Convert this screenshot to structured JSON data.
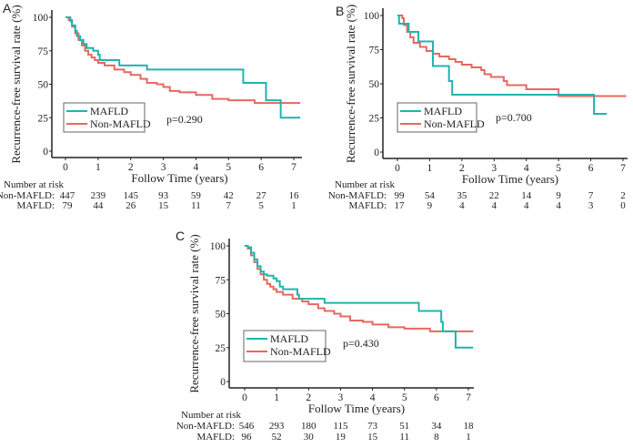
{
  "colors": {
    "MAFLD": "#1fb5ad",
    "Non-MAFLD": "#e8685f"
  },
  "chart_data": [
    {
      "panel": "A",
      "type": "line",
      "subtype": "kaplan-meier step",
      "xlabel": "Follow Time (years)",
      "ylabel": "Recurrence-free survival rate (%)",
      "xlim": [
        0,
        7
      ],
      "ylim": [
        0,
        100
      ],
      "xticks": [
        "0",
        "1",
        "2",
        "3",
        "4",
        "5",
        "6",
        "7"
      ],
      "yticks": [
        "0",
        "25",
        "50",
        "75",
        "100"
      ],
      "legend": [
        "MAFLD",
        "Non-MAFLD"
      ],
      "legend_position": "bottom-left",
      "p_value": "p=0.290",
      "risk_title": "Number at risk",
      "risk_rows": [
        {
          "label": "Non-MAFLD:",
          "values": [
            "447",
            "239",
            "145",
            "93",
            "59",
            "42",
            "27",
            "16"
          ]
        },
        {
          "label": "MAFLD:",
          "values": [
            "79",
            "44",
            "26",
            "15",
            "11",
            "7",
            "5",
            "1"
          ]
        }
      ],
      "series": [
        {
          "name": "MAFLD",
          "points": [
            [
              0,
              100
            ],
            [
              0.1,
              100
            ],
            [
              0.15,
              97
            ],
            [
              0.2,
              94
            ],
            [
              0.3,
              90
            ],
            [
              0.35,
              86
            ],
            [
              0.45,
              83
            ],
            [
              0.55,
              80
            ],
            [
              0.65,
              77
            ],
            [
              0.85,
              75
            ],
            [
              1.0,
              72
            ],
            [
              1.05,
              68
            ],
            [
              1.65,
              64
            ],
            [
              2.5,
              61
            ],
            [
              5.45,
              51
            ],
            [
              6.15,
              38
            ],
            [
              6.6,
              25
            ],
            [
              7.2,
              25
            ]
          ]
        },
        {
          "name": "Non-MAFLD",
          "points": [
            [
              0,
              100
            ],
            [
              0.1,
              98
            ],
            [
              0.2,
              93
            ],
            [
              0.3,
              88
            ],
            [
              0.4,
              83
            ],
            [
              0.5,
              79
            ],
            [
              0.6,
              75
            ],
            [
              0.7,
              72
            ],
            [
              0.8,
              70
            ],
            [
              0.9,
              68
            ],
            [
              1.0,
              66
            ],
            [
              1.2,
              64
            ],
            [
              1.5,
              61
            ],
            [
              1.8,
              59
            ],
            [
              2.0,
              57
            ],
            [
              2.3,
              54
            ],
            [
              2.5,
              51
            ],
            [
              2.8,
              50
            ],
            [
              3.0,
              48
            ],
            [
              3.2,
              45
            ],
            [
              3.5,
              44
            ],
            [
              4.0,
              42
            ],
            [
              4.5,
              39
            ],
            [
              5.0,
              38
            ],
            [
              5.8,
              36
            ],
            [
              7.2,
              36
            ]
          ]
        }
      ]
    },
    {
      "panel": "B",
      "type": "line",
      "subtype": "kaplan-meier step",
      "xlabel": "Follow Time (years)",
      "ylabel": "Recurrence-free survival rate (%)",
      "xlim": [
        0,
        7
      ],
      "ylim": [
        0,
        100
      ],
      "xticks": [
        "0",
        "1",
        "2",
        "3",
        "4",
        "5",
        "6",
        "7"
      ],
      "yticks": [
        "0",
        "25",
        "50",
        "75",
        "100"
      ],
      "legend": [
        "MAFLD",
        "Non-MAFLD"
      ],
      "legend_position": "bottom-left",
      "p_value": "p=0.700",
      "risk_title": "Number at risk",
      "risk_rows": [
        {
          "label": "Non-MAFLD:",
          "values": [
            "99",
            "54",
            "35",
            "22",
            "14",
            "9",
            "7",
            "2"
          ]
        },
        {
          "label": "MAFLD:",
          "values": [
            "17",
            "9",
            "4",
            "4",
            "4",
            "4",
            "3",
            "0"
          ]
        }
      ],
      "series": [
        {
          "name": "MAFLD",
          "points": [
            [
              0,
              100
            ],
            [
              0.05,
              94
            ],
            [
              0.35,
              88
            ],
            [
              0.65,
              81
            ],
            [
              1.1,
              63
            ],
            [
              1.6,
              52
            ],
            [
              1.7,
              42
            ],
            [
              6.1,
              28
            ],
            [
              6.5,
              28
            ]
          ]
        },
        {
          "name": "Non-MAFLD",
          "points": [
            [
              0,
              100
            ],
            [
              0.15,
              98
            ],
            [
              0.2,
              93
            ],
            [
              0.3,
              88
            ],
            [
              0.4,
              84
            ],
            [
              0.5,
              80
            ],
            [
              0.7,
              77
            ],
            [
              0.9,
              74
            ],
            [
              1.1,
              72
            ],
            [
              1.3,
              70
            ],
            [
              1.6,
              68
            ],
            [
              1.8,
              66
            ],
            [
              2.0,
              64
            ],
            [
              2.3,
              62
            ],
            [
              2.6,
              60
            ],
            [
              2.7,
              57
            ],
            [
              2.9,
              55
            ],
            [
              3.3,
              52
            ],
            [
              3.4,
              49
            ],
            [
              4.0,
              46
            ],
            [
              5.0,
              41
            ],
            [
              7.1,
              41
            ]
          ]
        }
      ]
    },
    {
      "panel": "C",
      "type": "line",
      "subtype": "kaplan-meier step",
      "xlabel": "Follow Time (years)",
      "ylabel": "Recurrence-free survival rate (%)",
      "xlim": [
        0,
        7
      ],
      "ylim": [
        0,
        100
      ],
      "xticks": [
        "0",
        "1",
        "2",
        "3",
        "4",
        "5",
        "6",
        "7"
      ],
      "yticks": [
        "0",
        "25",
        "50",
        "75",
        "100"
      ],
      "legend": [
        "MAFLD",
        "Non-MAFLD"
      ],
      "legend_position": "bottom-left",
      "p_value": "p=0.430",
      "risk_title": "Number at risk",
      "risk_rows": [
        {
          "label": "Non-MAFLD:",
          "values": [
            "546",
            "293",
            "180",
            "115",
            "73",
            "51",
            "34",
            "18"
          ]
        },
        {
          "label": "MAFLD:",
          "values": [
            "96",
            "52",
            "30",
            "19",
            "15",
            "11",
            "8",
            "1"
          ]
        }
      ],
      "series": [
        {
          "name": "MAFLD",
          "points": [
            [
              0,
              100
            ],
            [
              0.1,
              99
            ],
            [
              0.2,
              95
            ],
            [
              0.3,
              90
            ],
            [
              0.4,
              85
            ],
            [
              0.5,
              81
            ],
            [
              0.6,
              79
            ],
            [
              0.7,
              78
            ],
            [
              0.9,
              76
            ],
            [
              1.0,
              74
            ],
            [
              1.1,
              70
            ],
            [
              1.2,
              68
            ],
            [
              1.65,
              64
            ],
            [
              1.7,
              61
            ],
            [
              2.5,
              58
            ],
            [
              5.45,
              52
            ],
            [
              6.15,
              44
            ],
            [
              6.2,
              37
            ],
            [
              6.6,
              25
            ],
            [
              7.15,
              25
            ]
          ]
        },
        {
          "name": "Non-MAFLD",
          "points": [
            [
              0,
              100
            ],
            [
              0.1,
              98
            ],
            [
              0.2,
              93
            ],
            [
              0.3,
              88
            ],
            [
              0.4,
              83
            ],
            [
              0.5,
              79
            ],
            [
              0.6,
              75
            ],
            [
              0.7,
              72
            ],
            [
              0.8,
              70
            ],
            [
              0.9,
              68
            ],
            [
              1.0,
              66
            ],
            [
              1.2,
              64
            ],
            [
              1.5,
              61
            ],
            [
              1.8,
              59
            ],
            [
              2.0,
              57
            ],
            [
              2.3,
              54
            ],
            [
              2.5,
              52
            ],
            [
              2.8,
              50
            ],
            [
              3.0,
              48
            ],
            [
              3.3,
              45
            ],
            [
              3.7,
              44
            ],
            [
              4.0,
              42
            ],
            [
              4.5,
              40
            ],
            [
              5.0,
              39
            ],
            [
              5.8,
              37
            ],
            [
              7.15,
              37
            ]
          ]
        }
      ]
    }
  ]
}
